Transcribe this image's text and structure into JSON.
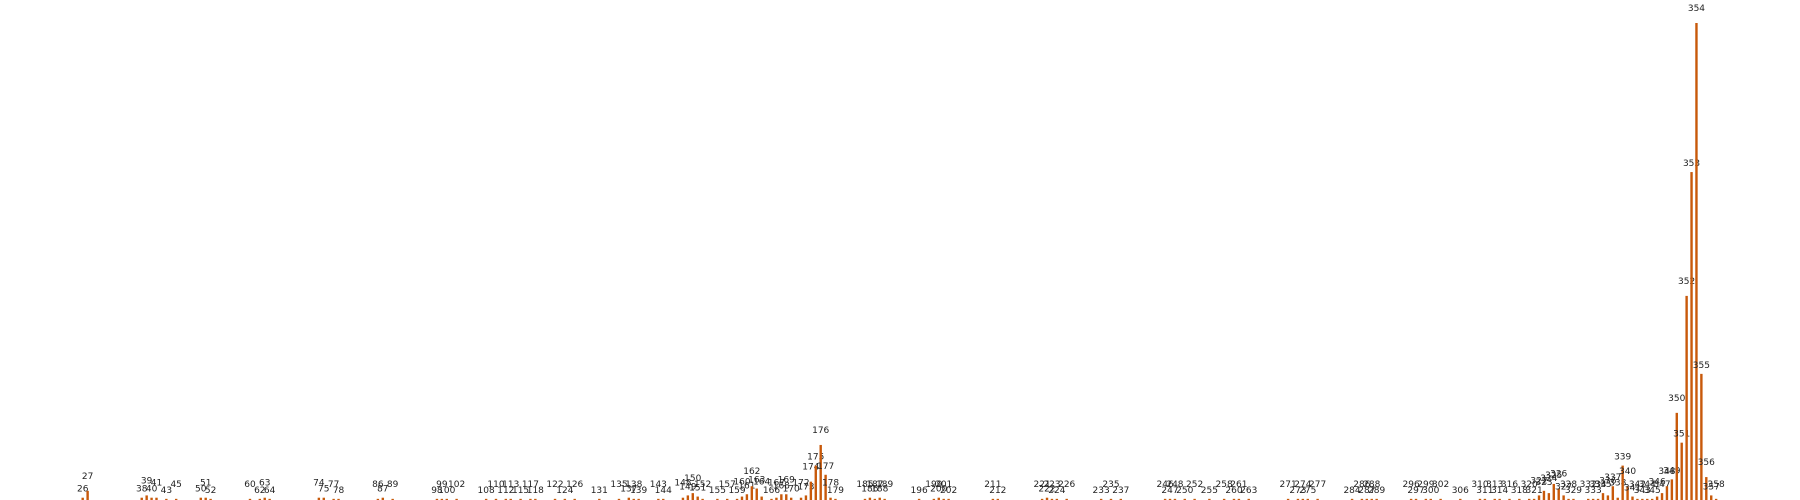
{
  "chart_data": {
    "type": "bar",
    "color": "#c8590a",
    "x": [
      26,
      27,
      38,
      39,
      40,
      41,
      43,
      45,
      50,
      51,
      52,
      60,
      62,
      63,
      64,
      74,
      75,
      77,
      78,
      86,
      87,
      89,
      98,
      99,
      100,
      102,
      108,
      110,
      112,
      113,
      115,
      117,
      118,
      122,
      124,
      126,
      131,
      135,
      137,
      138,
      139,
      143,
      144,
      148,
      149,
      150,
      151,
      152,
      155,
      157,
      159,
      160,
      161,
      162,
      163,
      164,
      166,
      167,
      168,
      169,
      170,
      172,
      173,
      174,
      175,
      176,
      177,
      178,
      179,
      185,
      186,
      187,
      188,
      189,
      196,
      199,
      200,
      201,
      202,
      211,
      212,
      221,
      222,
      223,
      224,
      226,
      233,
      235,
      237,
      246,
      247,
      248,
      250,
      252,
      255,
      258,
      260,
      261,
      263,
      271,
      273,
      274,
      275,
      277,
      284,
      286,
      287,
      288,
      289,
      296,
      297,
      299,
      300,
      302,
      306,
      310,
      311,
      313,
      314,
      316,
      318,
      320,
      321,
      322,
      323,
      324,
      325,
      326,
      327,
      328,
      329,
      332,
      333,
      334,
      335,
      336,
      337,
      338,
      339,
      340,
      341,
      342,
      343,
      344,
      345,
      346,
      347,
      348,
      349,
      350,
      351,
      352,
      353,
      354,
      355,
      356,
      357,
      358
    ],
    "values": [
      2,
      8,
      2,
      4,
      2,
      2,
      1,
      1,
      2,
      2,
      1,
      1,
      1,
      2,
      1,
      2,
      2,
      1,
      1,
      1,
      2,
      1,
      1,
      1,
      1,
      1,
      1,
      1,
      1,
      1,
      1,
      1,
      1,
      1,
      1,
      1,
      1,
      1,
      2,
      1,
      1,
      1,
      1,
      2,
      4,
      6,
      3,
      1,
      1,
      1,
      1,
      3,
      5,
      12,
      10,
      3,
      1,
      2,
      5,
      5,
      2,
      2,
      4,
      16,
      30,
      48,
      22,
      2,
      1,
      1,
      2,
      1,
      2,
      1,
      1,
      1,
      2,
      1,
      1,
      1,
      1,
      1,
      2,
      1,
      1,
      1,
      1,
      1,
      1,
      1,
      1,
      1,
      1,
      1,
      1,
      1,
      1,
      1,
      1,
      1,
      1,
      1,
      1,
      1,
      1,
      1,
      1,
      1,
      1,
      1,
      1,
      1,
      1,
      1,
      1,
      1,
      1,
      1,
      1,
      1,
      1,
      1,
      1,
      4,
      8,
      6,
      14,
      10,
      4,
      1,
      1,
      1,
      1,
      1,
      6,
      4,
      12,
      2,
      30,
      12,
      3,
      1,
      1,
      1,
      1,
      3,
      6,
      12,
      18,
      76,
      50,
      178,
      286,
      416,
      110,
      20,
      4,
      1
    ]
  }
}
